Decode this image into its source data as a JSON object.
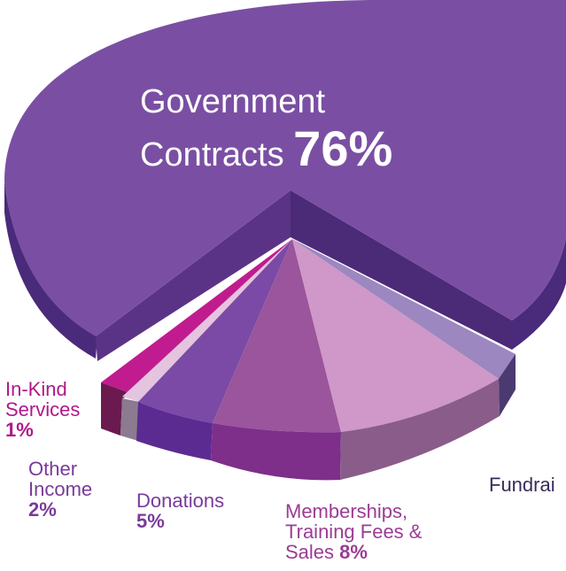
{
  "chart_data": {
    "type": "pie",
    "slices": [
      {
        "label": "Government Contracts",
        "percent_label": "76%",
        "value": 76,
        "color": "#7a4fa3"
      },
      {
        "label": "In-Kind Services",
        "percent_label": "1%",
        "value": 1,
        "color": "#c01c8f"
      },
      {
        "label": "Other Income",
        "percent_label": "2%",
        "value": 2,
        "color": "#e4c4de"
      },
      {
        "label": "Donations",
        "percent_label": "5%",
        "value": 5,
        "color": "#7b4aa6"
      },
      {
        "label": "Memberships, Training Fees & Sales",
        "percent_label": "8%",
        "value": 8,
        "color": "#9a559c"
      },
      {
        "label": "Fundrai",
        "percent_label": "",
        "value": 7,
        "color": "#cf98c8"
      },
      {
        "label": "",
        "percent_label": "",
        "value": 1,
        "color": "#9c87c0"
      }
    ]
  },
  "labels": {
    "gov_line1": "Government",
    "gov_line2": "Contracts ",
    "gov_pct": "76%",
    "inkind_line1": "In-Kind",
    "inkind_line2": "Services",
    "inkind_pct": "1%",
    "other_line1": "Other",
    "other_line2": "Income",
    "other_pct": "2%",
    "don_line1": "Donations",
    "don_pct": "5%",
    "mem_line1": "Memberships,",
    "mem_line2": "Training Fees &",
    "mem_line3": "Sales ",
    "mem_pct": "8%",
    "fund_line1": "Fundrai"
  }
}
